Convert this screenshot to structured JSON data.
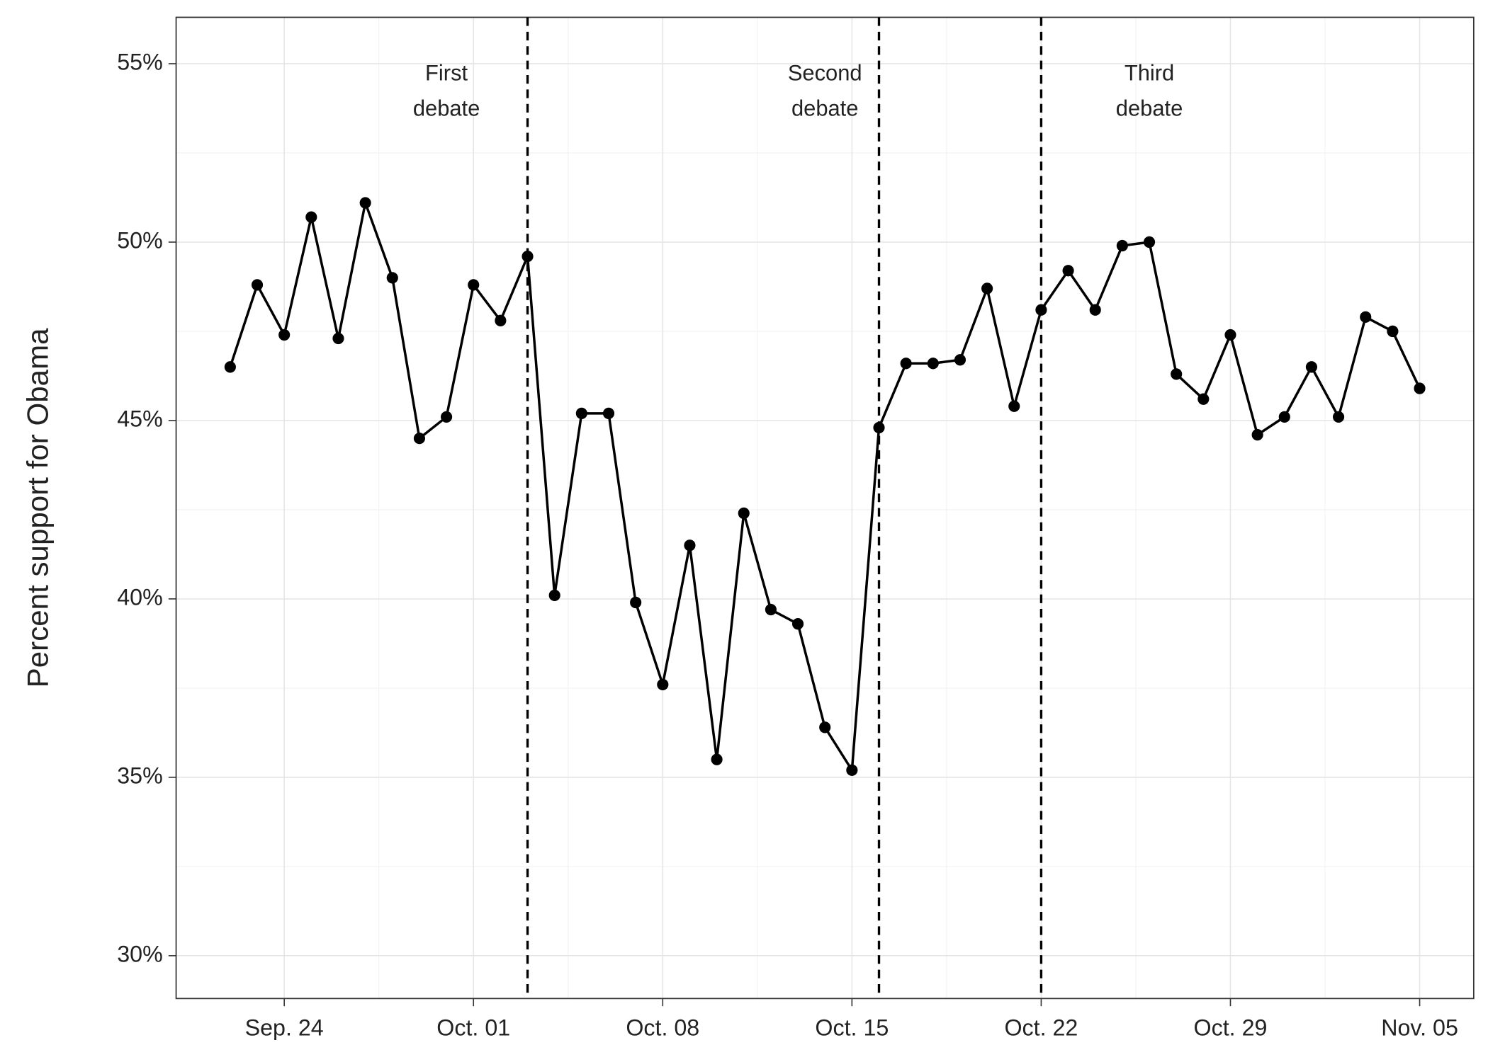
{
  "chart_data": {
    "type": "line",
    "y_label": "Percent support for Obama",
    "x": [
      "Sep. 22",
      "Sep. 23",
      "Sep. 24",
      "Sep. 25",
      "Sep. 26",
      "Sep. 27",
      "Sep. 28",
      "Sep. 29",
      "Sep. 30",
      "Oct. 01",
      "Oct. 02",
      "Oct. 03",
      "Oct. 04",
      "Oct. 05",
      "Oct. 06",
      "Oct. 07",
      "Oct. 08",
      "Oct. 09",
      "Oct. 10",
      "Oct. 11",
      "Oct. 12",
      "Oct. 13",
      "Oct. 14",
      "Oct. 15",
      "Oct. 16",
      "Oct. 17",
      "Oct. 18",
      "Oct. 19",
      "Oct. 20",
      "Oct. 21",
      "Oct. 22",
      "Oct. 23",
      "Oct. 24",
      "Oct. 25",
      "Oct. 26",
      "Oct. 27",
      "Oct. 28",
      "Oct. 29",
      "Oct. 30",
      "Oct. 31",
      "Nov. 01",
      "Nov. 02",
      "Nov. 03",
      "Nov. 04",
      "Nov. 05"
    ],
    "series": [
      {
        "color": "#000000",
        "values": [
          46.5,
          48.8,
          47.4,
          50.7,
          47.3,
          51.1,
          49.0,
          44.5,
          45.1,
          48.8,
          47.8,
          49.6,
          40.1,
          45.2,
          45.2,
          39.9,
          37.6,
          41.5,
          35.5,
          42.4,
          39.7,
          39.3,
          36.4,
          35.2,
          44.8,
          46.6,
          46.6,
          46.7,
          48.7,
          45.4,
          48.1,
          49.2,
          48.1,
          49.9,
          50.0,
          46.3,
          45.6,
          47.4,
          44.6,
          45.1,
          46.5,
          45.1,
          47.9,
          47.5,
          45.9
        ]
      }
    ],
    "xlim": [
      "Sep. 20",
      "Nov. 07"
    ],
    "xticks": [
      "Sep. 24",
      "Oct. 01",
      "Oct. 08",
      "Oct. 15",
      "Oct. 22",
      "Oct. 29",
      "Nov. 05"
    ],
    "ylim": [
      28.8,
      56.3
    ],
    "yticks": [
      {
        "value": 30,
        "label": "30%"
      },
      {
        "value": 35,
        "label": "35%"
      },
      {
        "value": 40,
        "label": "40%"
      },
      {
        "value": 45,
        "label": "45%"
      },
      {
        "value": 50,
        "label": "50%"
      },
      {
        "value": 55,
        "label": "55%"
      }
    ],
    "grid": true,
    "vlines": [
      "Oct. 03",
      "Oct. 16",
      "Oct. 22"
    ],
    "annotations": [
      {
        "x": "Sep. 30",
        "y": [
          54.7,
          53.7
        ],
        "lines": [
          "First",
          "debate"
        ]
      },
      {
        "x": "Oct. 14",
        "y": [
          54.7,
          53.7
        ],
        "lines": [
          "Second",
          "debate"
        ]
      },
      {
        "x": "Oct. 26",
        "y": [
          54.7,
          53.7
        ],
        "lines": [
          "Third",
          "debate"
        ]
      }
    ]
  }
}
